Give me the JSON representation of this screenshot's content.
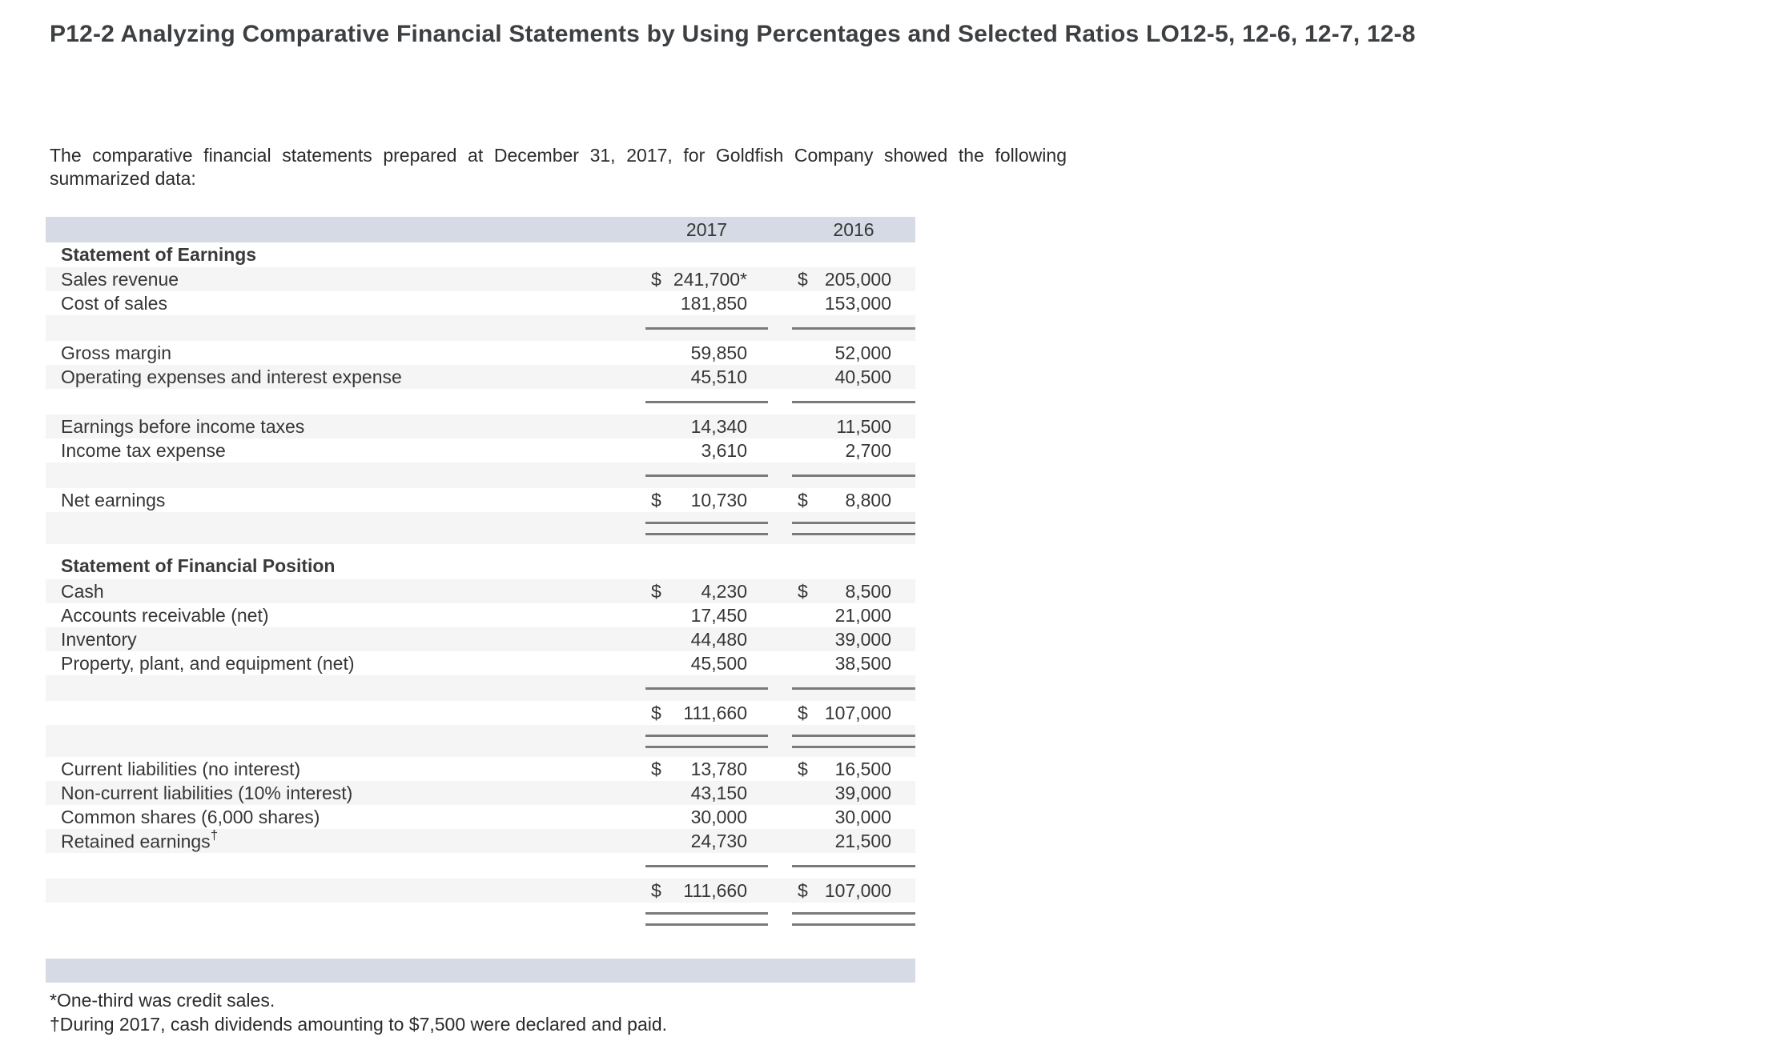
{
  "page": {
    "title": "P12-2 Analyzing Comparative Financial Statements by Using Percentages and Selected Ratios LO12-5, 12-6, 12-7, 12-8"
  },
  "intro": "The comparative financial statements prepared at December 31, 2017, for Goldfish Company showed the following summarized data:",
  "table": {
    "columns": [
      "2017",
      "2016"
    ],
    "rows": [
      {
        "type": "colhead",
        "name": "year-header-row",
        "shade": false
      },
      {
        "type": "section",
        "name": "section-statement-of-earnings",
        "label": "Statement of Earnings",
        "shade": false
      },
      {
        "type": "data",
        "label": "Sales revenue",
        "shade": true,
        "d1": "$",
        "v1": "241,700*",
        "d2": "$",
        "v2": "205,000"
      },
      {
        "type": "data",
        "label": "Cost of sales",
        "shade": false,
        "d1": "",
        "v1": "181,850",
        "d2": "",
        "v2": "153,000"
      },
      {
        "type": "rule",
        "shade": true
      },
      {
        "type": "data",
        "label": "Gross margin",
        "shade": false,
        "d1": "",
        "v1": "59,850",
        "d2": "",
        "v2": "52,000"
      },
      {
        "type": "data",
        "label": "Operating expenses and interest expense",
        "shade": true,
        "d1": "",
        "v1": "45,510",
        "d2": "",
        "v2": "40,500"
      },
      {
        "type": "rule",
        "shade": false
      },
      {
        "type": "data",
        "label": "Earnings before income taxes",
        "shade": true,
        "d1": "",
        "v1": "14,340",
        "d2": "",
        "v2": "11,500"
      },
      {
        "type": "data",
        "label": "Income tax expense",
        "shade": false,
        "d1": "",
        "v1": "3,610",
        "d2": "",
        "v2": "2,700"
      },
      {
        "type": "rule",
        "shade": true
      },
      {
        "type": "data",
        "label": "Net earnings",
        "shade": false,
        "d1": "$",
        "v1": "10,730",
        "d2": "$",
        "v2": "8,800"
      },
      {
        "type": "rule-double",
        "shade": true
      },
      {
        "type": "section",
        "name": "section-statement-of-financial-position",
        "label": "Statement of Financial Position",
        "shade": false,
        "tall": true
      },
      {
        "type": "data",
        "label": "Cash",
        "shade": true,
        "d1": "$",
        "v1": "4,230",
        "d2": "$",
        "v2": "8,500"
      },
      {
        "type": "data",
        "label": "Accounts receivable (net)",
        "shade": false,
        "d1": "",
        "v1": "17,450",
        "d2": "",
        "v2": "21,000"
      },
      {
        "type": "data",
        "label": "Inventory",
        "shade": true,
        "d1": "",
        "v1": "44,480",
        "d2": "",
        "v2": "39,000"
      },
      {
        "type": "data",
        "label": "Property, plant, and equipment (net)",
        "shade": false,
        "d1": "",
        "v1": "45,500",
        "d2": "",
        "v2": "38,500"
      },
      {
        "type": "rule",
        "shade": true
      },
      {
        "type": "data",
        "label": "",
        "name": "total-assets-row",
        "shade": false,
        "d1": "$",
        "v1": "111,660",
        "d2": "$",
        "v2": "107,000"
      },
      {
        "type": "rule-double",
        "shade": true
      },
      {
        "type": "data",
        "label": "Current liabilities (no interest)",
        "shade": false,
        "d1": "$",
        "v1": "13,780",
        "d2": "$",
        "v2": "16,500"
      },
      {
        "type": "data",
        "label": "Non-current liabilities (10% interest)",
        "shade": true,
        "d1": "",
        "v1": "43,150",
        "d2": "",
        "v2": "39,000"
      },
      {
        "type": "data",
        "label": "Common shares (6,000 shares)",
        "shade": false,
        "d1": "",
        "v1": "30,000",
        "d2": "",
        "v2": "30,000"
      },
      {
        "type": "data",
        "label": "Retained earnings",
        "sup": "†",
        "shade": true,
        "d1": "",
        "v1": "24,730",
        "d2": "",
        "v2": "21,500"
      },
      {
        "type": "rule",
        "shade": false
      },
      {
        "type": "data",
        "label": "",
        "name": "total-liabilities-equity-row",
        "shade": true,
        "d1": "$",
        "v1": "111,660",
        "d2": "$",
        "v2": "107,000"
      },
      {
        "type": "rule-double",
        "shade": false
      },
      {
        "type": "gap",
        "shade": false
      },
      {
        "type": "bar",
        "name": "table-bottom-bar",
        "shade": false
      }
    ]
  },
  "footnotes": [
    "*One-third was credit sales.",
    "†During 2017, cash dividends amounting to $7,500 were declared and paid."
  ],
  "colors": {
    "band": "#d6dae5",
    "stripe": "#f5f5f5",
    "rule": "#7a7a7a"
  }
}
